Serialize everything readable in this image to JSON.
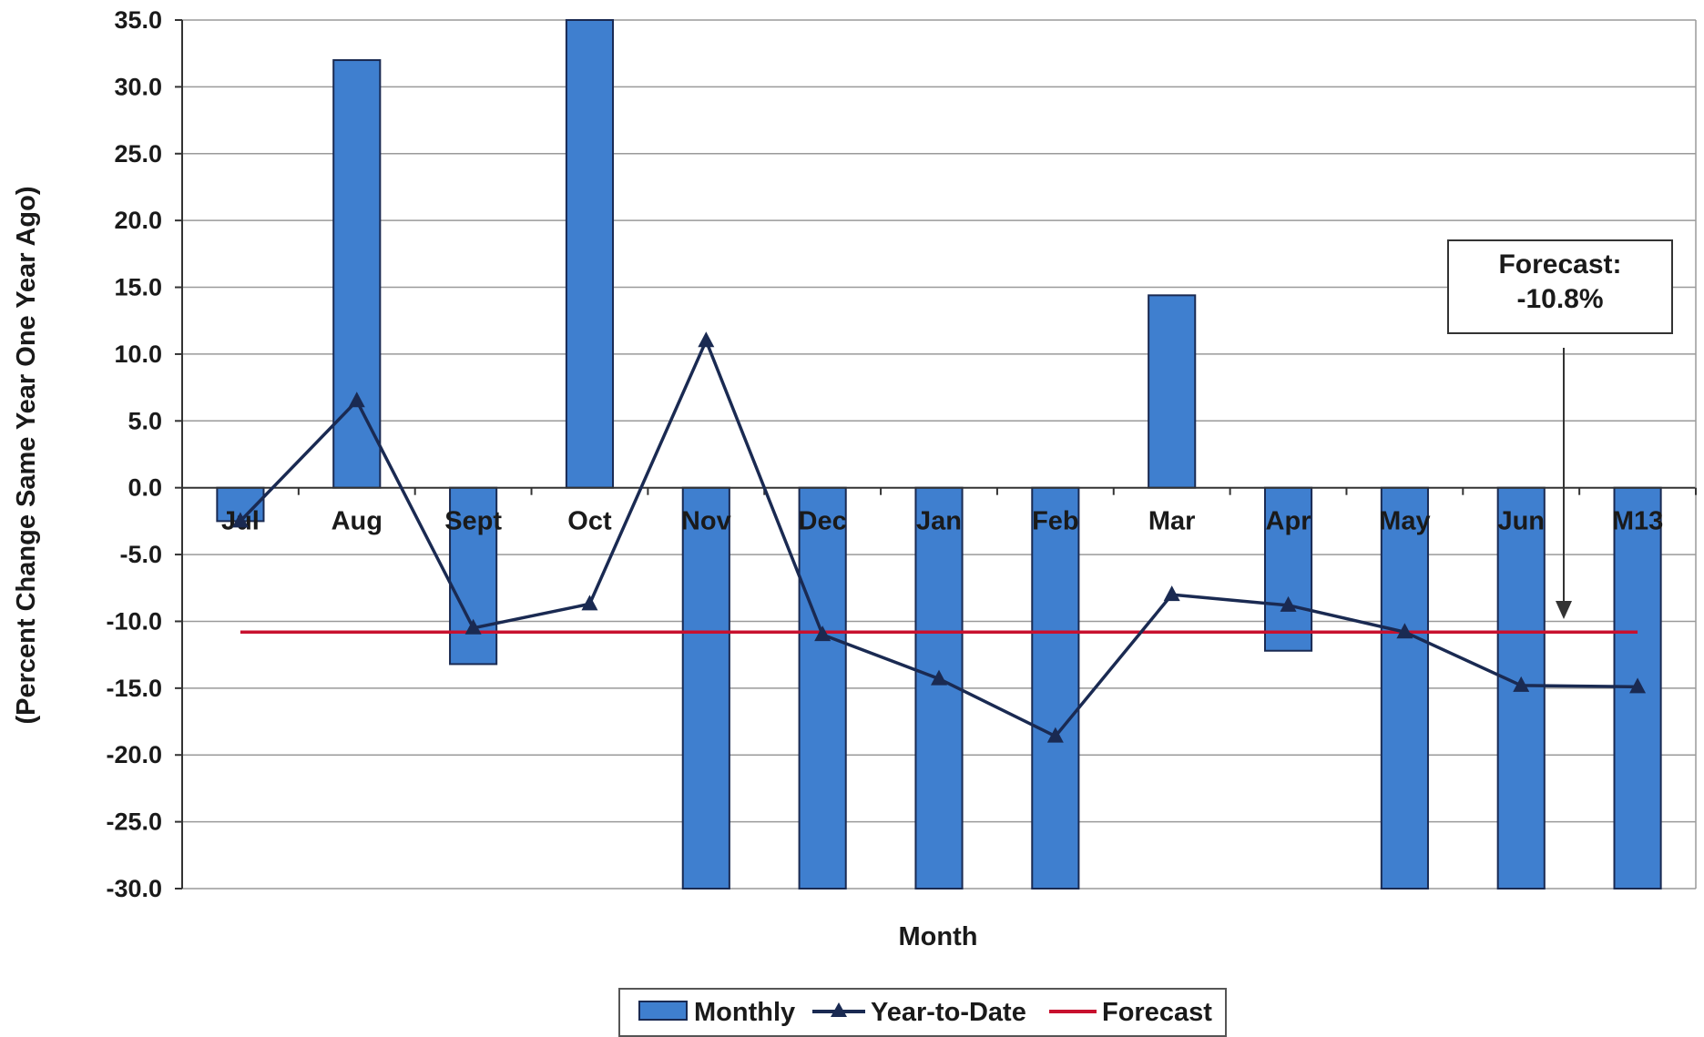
{
  "chart_data": {
    "type": "bar",
    "title": "",
    "xlabel": "Month",
    "ylabel": "(Percent Change Same Year One Year Ago)",
    "ylim": [
      -30,
      35
    ],
    "y_ticks": [
      35,
      30,
      25,
      20,
      15,
      10,
      5,
      0,
      -5,
      -10,
      -15,
      -20,
      -25,
      -30
    ],
    "y_tick_labels": [
      "35.0",
      "30.0",
      "25.0",
      "20.0",
      "15.0",
      "10.0",
      "5.0",
      "0.0",
      "-5.0",
      "-10.0",
      "-15.0",
      "-20.0",
      "-25.0",
      "-30.0"
    ],
    "grid": true,
    "legend_position": "bottom",
    "categories": [
      "Jul",
      "Aug",
      "Sept",
      "Oct",
      "Nov",
      "Dec",
      "Jan",
      "Feb",
      "Mar",
      "Apr",
      "May",
      "Jun",
      "M13"
    ],
    "series": [
      {
        "name": "Monthly",
        "type": "bar",
        "color": "#3f7fcf",
        "values": [
          -2.5,
          32.0,
          -13.2,
          35.0,
          -30.0,
          -30.0,
          -30.0,
          -30.0,
          14.4,
          -12.2,
          -30.0,
          -30.0,
          -30.0
        ]
      },
      {
        "name": "Year-to-Date",
        "type": "line",
        "color": "#1a2a52",
        "marker": "triangle",
        "values": [
          -2.5,
          6.5,
          -10.5,
          -8.7,
          11.0,
          -11.0,
          -14.3,
          -18.6,
          -8.0,
          -8.8,
          -10.8,
          -14.8,
          -14.9
        ]
      },
      {
        "name": "Forecast",
        "type": "line",
        "color": "#c8102e",
        "values": [
          -10.8,
          -10.8,
          -10.8,
          -10.8,
          -10.8,
          -10.8,
          -10.8,
          -10.8,
          -10.8,
          -10.8,
          -10.8,
          -10.8,
          -10.8
        ]
      }
    ],
    "annotation": {
      "line1": "Forecast:",
      "line2": "-10.8%"
    }
  }
}
